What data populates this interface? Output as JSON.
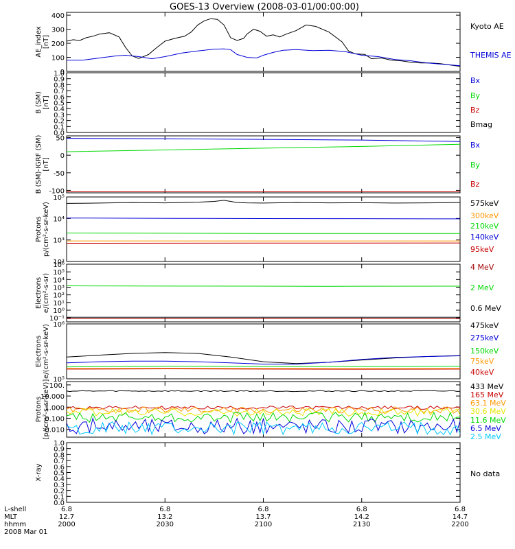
{
  "title": "GOES-13 Overview (2008-03-01/00:00:00)",
  "colors": {
    "black": "#000000",
    "blue": "#0000d8",
    "green": "#00d800",
    "red": "#c80000",
    "orange": "#ff9600",
    "yellow": "#e6e600",
    "cyan": "#00c8ff",
    "purple": "#6a00a0",
    "darkred": "#a00000"
  },
  "footer": {
    "row_labels": [
      "L-shell",
      "MLT",
      "hhmm",
      "2008 Mar 01"
    ],
    "ticks": [
      {
        "lshell": "6.8",
        "mlt": "12.7",
        "hhmm": "2000"
      },
      {
        "lshell": "6.8",
        "mlt": "13.2",
        "hhmm": "2030"
      },
      {
        "lshell": "6.8",
        "mlt": "13.7",
        "hhmm": "2100"
      },
      {
        "lshell": "6.8",
        "mlt": "14.2",
        "hhmm": "2130"
      },
      {
        "lshell": "6.8",
        "mlt": "14.7",
        "hhmm": "2200"
      }
    ]
  },
  "chart_data": [
    {
      "type": "line",
      "id": "ae",
      "ylabel": [
        "AE_index",
        "[nT]"
      ],
      "scale": "linear",
      "ylim": [
        0,
        420
      ],
      "ytick_values": [
        0,
        100,
        200,
        300,
        400
      ],
      "ytick_labels": [
        "0",
        "100",
        "200",
        "300",
        "400"
      ],
      "xlim": [
        0,
        120
      ],
      "series": [
        {
          "name": "Kyoto AE",
          "color": "#000000",
          "x": [
            0,
            2,
            4,
            6,
            8,
            10,
            13,
            16,
            18,
            20,
            22,
            25,
            27,
            30,
            33,
            36,
            38,
            40,
            42,
            44,
            46,
            48,
            50,
            52,
            54,
            55,
            57,
            59,
            61,
            63,
            65,
            67,
            70,
            73,
            76,
            80,
            84,
            86,
            88,
            91,
            93,
            96,
            99,
            102,
            105,
            108,
            111,
            114,
            117,
            120
          ],
          "y": [
            215,
            225,
            220,
            240,
            250,
            265,
            275,
            245,
            170,
            110,
            92,
            120,
            160,
            215,
            235,
            250,
            280,
            330,
            360,
            375,
            370,
            330,
            240,
            220,
            235,
            265,
            300,
            285,
            250,
            260,
            245,
            265,
            290,
            330,
            320,
            280,
            210,
            145,
            125,
            120,
            90,
            95,
            80,
            75,
            65,
            60,
            60,
            55,
            45,
            35
          ]
        },
        {
          "name": "THEMIS AE",
          "color": "#0000d8",
          "x": [
            0,
            5,
            10,
            15,
            18,
            22,
            26,
            30,
            35,
            40,
            45,
            48,
            50,
            52,
            55,
            58,
            60,
            63,
            66,
            70,
            75,
            80,
            85,
            90,
            95,
            100,
            105,
            110,
            115,
            120
          ],
          "y": [
            80,
            80,
            95,
            110,
            115,
            105,
            90,
            105,
            130,
            145,
            158,
            160,
            155,
            120,
            100,
            95,
            115,
            135,
            150,
            155,
            148,
            150,
            140,
            115,
            105,
            85,
            75,
            60,
            50,
            40
          ]
        }
      ]
    },
    {
      "type": "line",
      "id": "bsm",
      "ylabel": [
        "B (SM)",
        "[nT]"
      ],
      "scale": "linear",
      "ylim": [
        0,
        1
      ],
      "ytick_values": [
        0,
        0.1,
        0.2,
        0.3,
        0.4,
        0.5,
        0.6,
        0.7,
        0.8,
        0.9,
        1.0
      ],
      "ytick_labels": [
        "0.0",
        "0.1",
        "0.2",
        "0.3",
        "0.4",
        "0.5",
        "0.6",
        "0.7",
        "0.8",
        "0.9",
        "1.0"
      ],
      "xlim": [
        0,
        120
      ],
      "series": [],
      "legend": [
        {
          "label": "Bx",
          "color": "#0000d8"
        },
        {
          "label": "By",
          "color": "#00d800"
        },
        {
          "label": "Bz",
          "color": "#c80000"
        },
        {
          "label": "Bmag",
          "color": "#000000"
        }
      ]
    },
    {
      "type": "line",
      "id": "bigrf",
      "ylabel": [
        "B (SM)-IGRF (SM)",
        "[nT]"
      ],
      "scale": "linear",
      "ylim": [
        -107,
        55
      ],
      "ytick_values": [
        -100,
        -50,
        0,
        50
      ],
      "ytick_labels": [
        "-100",
        "-50",
        "0",
        "50"
      ],
      "xlim": [
        0,
        120
      ],
      "series": [
        {
          "name": "Bx",
          "color": "#0000d8",
          "x": [
            0,
            30,
            60,
            90,
            120
          ],
          "y": [
            48,
            47,
            45,
            43,
            39
          ]
        },
        {
          "name": "By",
          "color": "#00d800",
          "x": [
            0,
            30,
            60,
            90,
            120
          ],
          "y": [
            10,
            15,
            20,
            25,
            31
          ]
        },
        {
          "name": "Bz",
          "color": "#c80000",
          "x": [
            0,
            120
          ],
          "y": [
            -104,
            -104
          ]
        }
      ]
    },
    {
      "type": "line",
      "id": "protons1",
      "ylabel": [
        "Protons",
        "p/(cm²-s-sr-keV)"
      ],
      "scale": "log",
      "ylim": [
        100,
        100000
      ],
      "ytick_values": [
        100,
        1000,
        10000,
        100000
      ],
      "ytick_labels": [
        "10²",
        "10³",
        "10⁴",
        "10⁵"
      ],
      "xlim": [
        0,
        120
      ],
      "series": [
        {
          "name": "575keV",
          "color": "#000000",
          "x": [
            0,
            10,
            20,
            30,
            40,
            45,
            48,
            50,
            52,
            55,
            60,
            70,
            80,
            90,
            100,
            110,
            120
          ],
          "y": [
            50000,
            52000,
            55000,
            53000,
            57000,
            62000,
            70000,
            62000,
            55000,
            53000,
            52000,
            55000,
            53000,
            54000,
            52000,
            53000,
            55000
          ]
        },
        {
          "name": "300keV",
          "color": "#ff9600",
          "x": [
            0,
            120
          ],
          "y": [
            900,
            900
          ]
        },
        {
          "name": "210keV",
          "color": "#00d800",
          "x": [
            0,
            60,
            120
          ],
          "y": [
            2100,
            2000,
            2000
          ]
        },
        {
          "name": "140keV",
          "color": "#0000d8",
          "x": [
            0,
            40,
            80,
            120
          ],
          "y": [
            10500,
            10000,
            9800,
            9600
          ]
        },
        {
          "name": "95keV",
          "color": "#c80000",
          "x": [
            0,
            120
          ],
          "y": [
            700,
            720
          ]
        }
      ]
    },
    {
      "type": "line",
      "id": "electrons1",
      "ylabel": [
        "Electrons",
        "e/(cm²-s-sr)"
      ],
      "scale": "log",
      "ylim": [
        0.03,
        1000000
      ],
      "ytick_values": [
        0.1,
        1,
        10,
        100,
        1000,
        10000,
        100000,
        1000000
      ],
      "ytick_labels": [
        "10⁻¹",
        "10⁰",
        "10¹",
        "10²",
        "10³",
        "10⁴",
        "10⁵",
        "10⁶"
      ],
      "xlim": [
        0,
        120
      ],
      "series": [
        {
          "name": "4 MeV",
          "color": "#a00000",
          "x": [
            0,
            120
          ],
          "y": [
            0.08,
            0.08
          ]
        },
        {
          "name": "2 MeV",
          "color": "#00d800",
          "x": [
            0,
            40,
            80,
            120
          ],
          "y": [
            1500,
            1400,
            1300,
            1350
          ]
        },
        {
          "name": "0.6 MeV",
          "color": "#000000",
          "x": [
            0,
            120
          ],
          "y": [
            0.12,
            0.12
          ]
        }
      ]
    },
    {
      "type": "line",
      "id": "electrons2",
      "ylabel": [
        "Electrons",
        "e/(cm²-s-sr-keV)"
      ],
      "scale": "log",
      "ylim": [
        100000,
        1000000
      ],
      "ytick_values": [
        100000,
        1000000
      ],
      "ytick_labels": [
        "10⁵",
        "10⁶"
      ],
      "xlim": [
        0,
        120
      ],
      "series": [
        {
          "name": "475keV",
          "color": "#000000",
          "x": [
            0,
            10,
            20,
            30,
            40,
            50,
            60,
            70,
            80,
            90,
            100,
            110,
            120
          ],
          "y": [
            250000,
            270000,
            290000,
            300000,
            290000,
            250000,
            205000,
            190000,
            200000,
            220000,
            240000,
            255000,
            265000
          ]
        },
        {
          "name": "275keV",
          "color": "#0000d8",
          "x": [
            0,
            10,
            20,
            30,
            40,
            50,
            60,
            70,
            80,
            90,
            100,
            110,
            120
          ],
          "y": [
            195000,
            205000,
            210000,
            210000,
            205000,
            195000,
            185000,
            185000,
            200000,
            225000,
            245000,
            255000,
            262000
          ]
        },
        {
          "name": "150keV",
          "color": "#00d800",
          "x": [
            0,
            30,
            60,
            90,
            120
          ],
          "y": [
            165000,
            170000,
            168000,
            168000,
            170000
          ]
        },
        {
          "name": "75keV",
          "color": "#ff9600",
          "x": [
            0,
            120
          ],
          "y": [
            155000,
            155000
          ]
        },
        {
          "name": "40keV",
          "color": "#c80000",
          "x": [
            0,
            30,
            60,
            90,
            120
          ],
          "y": [
            150000,
            152000,
            150000,
            149000,
            150000
          ]
        }
      ]
    },
    {
      "type": "line",
      "id": "protons2",
      "ylabel": [
        "Protons",
        "[p/(cm²-s-sr-keV)]"
      ],
      "scale": "log",
      "ylim": [
        0.002,
        200
      ],
      "ytick_values": [
        0.001,
        0.01,
        0.1,
        1,
        10,
        100
      ],
      "ytick_labels": [
        "0.001",
        "0.010",
        "0.100",
        "1.000",
        "10.000",
        "100."
      ],
      "xlim": [
        0,
        120
      ],
      "series": [
        {
          "name": "433 MeV",
          "color": "#000000",
          "base": 28,
          "noise": 0.05
        },
        {
          "name": "165 MeV",
          "color": "#c80000",
          "base": 0.9,
          "noise": 0.15
        },
        {
          "name": "63.1 MeV",
          "color": "#ff9600",
          "base": 0.55,
          "noise": 0.3
        },
        {
          "name": "30.6 MeV",
          "color": "#e6e600",
          "base": 0.35,
          "noise": 0.35
        },
        {
          "name": "11.6 MeV",
          "color": "#00d800",
          "base": 0.12,
          "noise": 0.45
        },
        {
          "name": "6.5 MeV",
          "color": "#0000d8",
          "base": 0.02,
          "noise": 0.7
        },
        {
          "name": "2.5 MeV",
          "color": "#00c8ff",
          "base": 0.012,
          "noise": 0.6
        }
      ]
    },
    {
      "type": "line",
      "id": "xray",
      "ylabel": [
        "X-ray",
        ""
      ],
      "scale": "linear",
      "ylim": [
        0,
        1
      ],
      "ytick_values": [
        0,
        0.1,
        0.2,
        0.3,
        0.4,
        0.5,
        0.6,
        0.7,
        0.8,
        0.9,
        1.0
      ],
      "ytick_labels": [
        "0.0",
        "0.1",
        "0.2",
        "0.3",
        "0.4",
        "0.5",
        "0.6",
        "0.7",
        "0.8",
        "0.9",
        "1.0"
      ],
      "xlim": [
        0,
        120
      ],
      "series": [],
      "legend": [
        {
          "label": "No data",
          "color": "#000000"
        }
      ]
    }
  ]
}
